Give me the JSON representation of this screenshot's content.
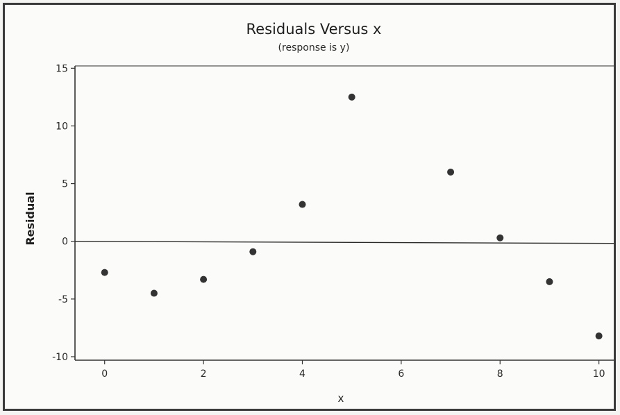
{
  "chart_data": {
    "type": "scatter",
    "title": "Residuals Versus x",
    "subtitle": "(response is y)",
    "xlabel": "x",
    "ylabel": "Residual",
    "xlim": [
      -0.6,
      10.3
    ],
    "ylim": [
      -10.3,
      15.2
    ],
    "x_ticks": [
      0,
      2,
      4,
      6,
      8,
      10
    ],
    "y_ticks": [
      -10,
      -5,
      0,
      5,
      10,
      15
    ],
    "reference_line_y": 0,
    "grid": false,
    "legend": "none",
    "point_color": "#333333",
    "points": [
      {
        "x": 0,
        "y": -2.7
      },
      {
        "x": 1,
        "y": -4.5
      },
      {
        "x": 2,
        "y": -3.3
      },
      {
        "x": 3,
        "y": -0.9
      },
      {
        "x": 4,
        "y": 3.2
      },
      {
        "x": 5,
        "y": 12.5
      },
      {
        "x": 7,
        "y": 6.0
      },
      {
        "x": 8,
        "y": 0.3
      },
      {
        "x": 9,
        "y": -3.5
      },
      {
        "x": 10,
        "y": -8.2
      }
    ]
  }
}
